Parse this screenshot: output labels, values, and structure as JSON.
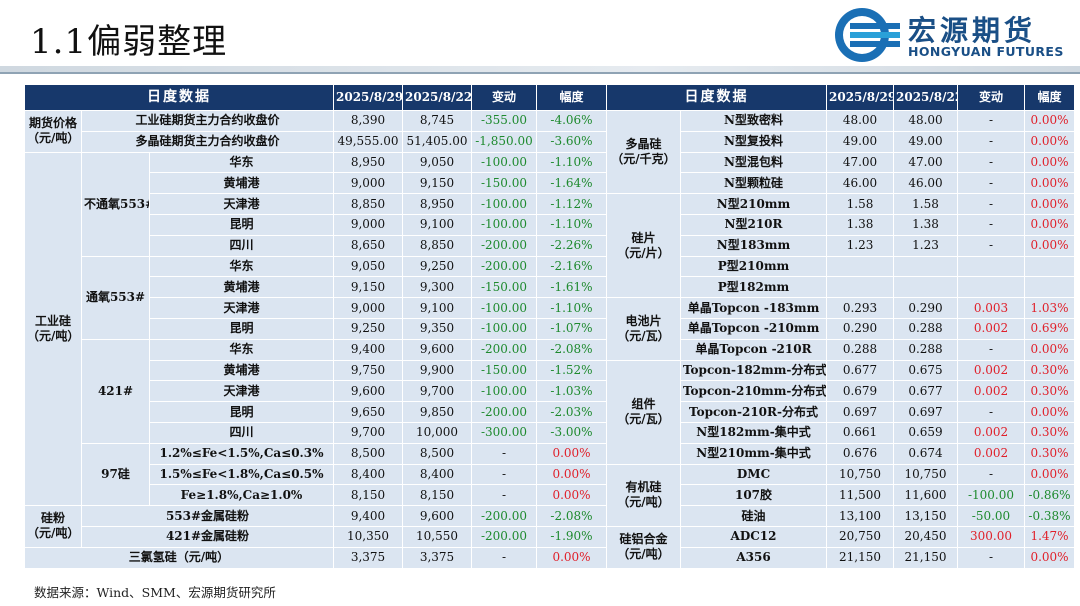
{
  "page": {
    "title": "1.1偏弱整理",
    "logo_cn": "宏源期货",
    "logo_en": "HONGYUAN FUTURES",
    "source": "数据来源：Wind、SMM、宏源期货研究所"
  },
  "headers": {
    "left_title": "日度数据",
    "date1": "2025/8/29",
    "date2": "2025/8/22",
    "change": "变动",
    "pct": "幅度",
    "right_title": "日度数据"
  },
  "left": {
    "futures": {
      "cat": "期货价格\n（元/吨）",
      "rows": [
        {
          "name": "工业硅期货主力合约收盘价",
          "v1": "8,390",
          "v2": "8,745",
          "chg": "-355.00",
          "pct": "-4.06%"
        },
        {
          "name": "多晶硅期货主力合约收盘价",
          "v1": "49,555.00",
          "v2": "51,405.00",
          "chg": "-1,850.00",
          "pct": "-3.60%"
        }
      ]
    },
    "industrial": {
      "cat": "工业硅\n（元/吨）",
      "groups": [
        {
          "sub": "不通氧553#",
          "rows": [
            {
              "name": "华东",
              "v1": "8,950",
              "v2": "9,050",
              "chg": "-100.00",
              "pct": "-1.10%"
            },
            {
              "name": "黄埔港",
              "v1": "9,000",
              "v2": "9,150",
              "chg": "-150.00",
              "pct": "-1.64%"
            },
            {
              "name": "天津港",
              "v1": "8,850",
              "v2": "8,950",
              "chg": "-100.00",
              "pct": "-1.12%"
            },
            {
              "name": "昆明",
              "v1": "9,000",
              "v2": "9,100",
              "chg": "-100.00",
              "pct": "-1.10%"
            },
            {
              "name": "四川",
              "v1": "8,650",
              "v2": "8,850",
              "chg": "-200.00",
              "pct": "-2.26%"
            }
          ]
        },
        {
          "sub": "通氧553#",
          "rows": [
            {
              "name": "华东",
              "v1": "9,050",
              "v2": "9,250",
              "chg": "-200.00",
              "pct": "-2.16%"
            },
            {
              "name": "黄埔港",
              "v1": "9,150",
              "v2": "9,300",
              "chg": "-150.00",
              "pct": "-1.61%"
            },
            {
              "name": "天津港",
              "v1": "9,000",
              "v2": "9,100",
              "chg": "-100.00",
              "pct": "-1.10%"
            },
            {
              "name": "昆明",
              "v1": "9,250",
              "v2": "9,350",
              "chg": "-100.00",
              "pct": "-1.07%"
            }
          ]
        },
        {
          "sub": "421#",
          "rows": [
            {
              "name": "华东",
              "v1": "9,400",
              "v2": "9,600",
              "chg": "-200.00",
              "pct": "-2.08%"
            },
            {
              "name": "黄埔港",
              "v1": "9,750",
              "v2": "9,900",
              "chg": "-150.00",
              "pct": "-1.52%"
            },
            {
              "name": "天津港",
              "v1": "9,600",
              "v2": "9,700",
              "chg": "-100.00",
              "pct": "-1.03%"
            },
            {
              "name": "昆明",
              "v1": "9,650",
              "v2": "9,850",
              "chg": "-200.00",
              "pct": "-2.03%"
            },
            {
              "name": "四川",
              "v1": "9,700",
              "v2": "10,000",
              "chg": "-300.00",
              "pct": "-3.00%"
            }
          ]
        },
        {
          "sub": "97硅",
          "rows": [
            {
              "name": "1.2%≤Fe<1.5%,Ca≤0.3%",
              "v1": "8,500",
              "v2": "8,500",
              "chg": "-",
              "pct": "0.00%"
            },
            {
              "name": "1.5%≤Fe<1.8%,Ca≤0.5%",
              "v1": "8,400",
              "v2": "8,400",
              "chg": "-",
              "pct": "0.00%"
            },
            {
              "name": "Fe≥1.8%,Ca≥1.0%",
              "v1": "8,150",
              "v2": "8,150",
              "chg": "-",
              "pct": "0.00%"
            }
          ]
        }
      ]
    },
    "powder": {
      "cat": "硅粉\n（元/吨）",
      "rows": [
        {
          "name": "553#金属硅粉",
          "v1": "9,400",
          "v2": "9,600",
          "chg": "-200.00",
          "pct": "-2.08%"
        },
        {
          "name": "421#金属硅粉",
          "v1": "10,350",
          "v2": "10,550",
          "chg": "-200.00",
          "pct": "-1.90%"
        }
      ]
    },
    "trichlorosilane": {
      "name": "三氯氢硅（元/吨）",
      "v1": "3,375",
      "v2": "3,375",
      "chg": "-",
      "pct": "0.00%"
    }
  },
  "right": {
    "poly": {
      "cat": "多晶硅\n（元/千克）",
      "rows": [
        {
          "name": "N型致密料",
          "v1": "48.00",
          "v2": "48.00",
          "chg": "-",
          "pct": "0.00%"
        },
        {
          "name": "N型复投料",
          "v1": "49.00",
          "v2": "49.00",
          "chg": "-",
          "pct": "0.00%"
        },
        {
          "name": "N型混包料",
          "v1": "47.00",
          "v2": "47.00",
          "chg": "-",
          "pct": "0.00%"
        },
        {
          "name": "N型颗粒硅",
          "v1": "46.00",
          "v2": "46.00",
          "chg": "-",
          "pct": "0.00%"
        }
      ]
    },
    "wafer": {
      "cat": "硅片\n（元/片）",
      "rows": [
        {
          "name": "N型210mm",
          "v1": "1.58",
          "v2": "1.58",
          "chg": "-",
          "pct": "0.00%"
        },
        {
          "name": "N型210R",
          "v1": "1.38",
          "v2": "1.38",
          "chg": "-",
          "pct": "0.00%"
        },
        {
          "name": "N型183mm",
          "v1": "1.23",
          "v2": "1.23",
          "chg": "-",
          "pct": "0.00%"
        },
        {
          "name": "P型210mm",
          "v1": "",
          "v2": "",
          "chg": "",
          "pct": ""
        },
        {
          "name": "P型182mm",
          "v1": "",
          "v2": "",
          "chg": "",
          "pct": ""
        }
      ]
    },
    "cell": {
      "cat": "电池片\n（元/瓦）",
      "rows": [
        {
          "name": "单晶Topcon -183mm",
          "v1": "0.293",
          "v2": "0.290",
          "chg": "0.003",
          "pct": "1.03%"
        },
        {
          "name": "单晶Topcon -210mm",
          "v1": "0.290",
          "v2": "0.288",
          "chg": "0.002",
          "pct": "0.69%"
        },
        {
          "name": "单晶Topcon -210R",
          "v1": "0.288",
          "v2": "0.288",
          "chg": "-",
          "pct": "0.00%"
        }
      ]
    },
    "module": {
      "cat": "组件\n（元/瓦）",
      "rows": [
        {
          "name": "Topcon-182mm-分布式",
          "v1": "0.677",
          "v2": "0.675",
          "chg": "0.002",
          "pct": "0.30%"
        },
        {
          "name": "Topcon-210mm-分布式",
          "v1": "0.679",
          "v2": "0.677",
          "chg": "0.002",
          "pct": "0.30%"
        },
        {
          "name": "Topcon-210R-分布式",
          "v1": "0.697",
          "v2": "0.697",
          "chg": "-",
          "pct": "0.00%"
        },
        {
          "name": "N型182mm-集中式",
          "v1": "0.661",
          "v2": "0.659",
          "chg": "0.002",
          "pct": "0.30%"
        },
        {
          "name": "N型210mm-集中式",
          "v1": "0.676",
          "v2": "0.674",
          "chg": "0.002",
          "pct": "0.30%"
        }
      ]
    },
    "organic": {
      "cat": "有机硅\n（元/吨）",
      "rows": [
        {
          "name": "DMC",
          "v1": "10,750",
          "v2": "10,750",
          "chg": "-",
          "pct": "0.00%"
        },
        {
          "name": "107胶",
          "v1": "11,500",
          "v2": "11,600",
          "chg": "-100.00",
          "pct": "-0.86%"
        },
        {
          "name": "硅油",
          "v1": "13,100",
          "v2": "13,150",
          "chg": "-50.00",
          "pct": "-0.38%"
        }
      ]
    },
    "alloy": {
      "cat": "硅铝合金\n（元/吨）",
      "rows": [
        {
          "name": "ADC12",
          "v1": "20,750",
          "v2": "20,450",
          "chg": "300.00",
          "pct": "1.47%"
        },
        {
          "name": "A356",
          "v1": "21,150",
          "v2": "21,150",
          "chg": "-",
          "pct": "0.00%"
        }
      ]
    }
  },
  "colors": {
    "header_bg": "#17386b",
    "cell_bg": "#dbe5f1",
    "negative": "#1e8a2e",
    "positive": "#e0202a",
    "brand": "#1a4f86"
  }
}
